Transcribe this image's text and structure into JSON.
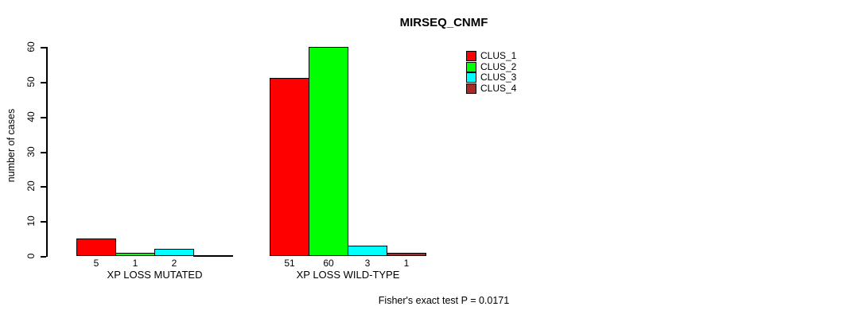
{
  "figure": {
    "background": "#FFFFFF",
    "axis_color": "#000000",
    "bar_border_color": "#000000"
  },
  "chart_data": {
    "type": "bar",
    "title": "MIRSEQ_CNMF",
    "ylabel": "number of cases",
    "xlabel": "",
    "ylim": [
      0,
      60
    ],
    "yticks": [
      0,
      10,
      20,
      30,
      40,
      50,
      60
    ],
    "grid": false,
    "legend_position": "top-right",
    "categories": [
      "XP LOSS MUTATED",
      "XP LOSS WILD-TYPE"
    ],
    "series": [
      {
        "name": "CLUS_1",
        "color": "#FF0000",
        "values": [
          5,
          51
        ]
      },
      {
        "name": "CLUS_2",
        "color": "#00FF00",
        "values": [
          1,
          60
        ]
      },
      {
        "name": "CLUS_3",
        "color": "#00FFFF",
        "values": [
          2,
          3
        ]
      },
      {
        "name": "CLUS_4",
        "color": "#A52A2A",
        "values": [
          0,
          1
        ]
      }
    ],
    "bar_value_labels": [
      [
        "5",
        "1",
        "2",
        ""
      ],
      [
        "51",
        "60",
        "3",
        "1"
      ]
    ],
    "annotation": "Fisher's exact test P = 0.0171"
  }
}
